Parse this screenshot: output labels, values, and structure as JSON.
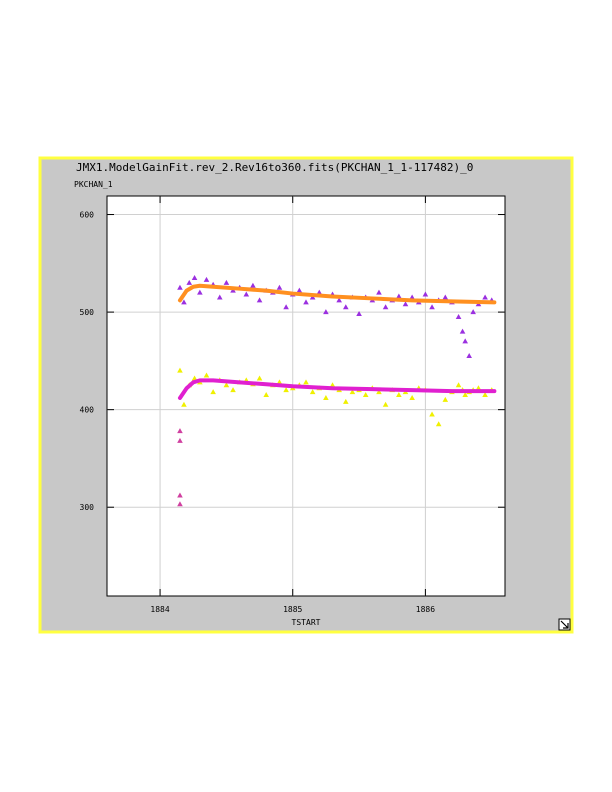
{
  "chart_data": {
    "type": "scatter",
    "title": "JMX1.ModelGainFit.rev_2.Rev16to360.fits(PKCHAN_1_1-117482)_0",
    "y_label": "PKCHAN_1",
    "x_label": "TSTART",
    "xlim": [
      1883.6,
      1886.6
    ],
    "ylim": [
      209,
      619
    ],
    "xticks": [
      1884,
      1885,
      1886
    ],
    "yticks": [
      300,
      400,
      500,
      600
    ],
    "grid": true,
    "series": [
      {
        "color": "#9b30e0",
        "mode": "markers",
        "x": [
          1884.15,
          1884.18,
          1884.22,
          1884.26,
          1884.3,
          1884.35,
          1884.4,
          1884.45,
          1884.5,
          1884.55,
          1884.6,
          1884.65,
          1884.7,
          1884.75,
          1884.8,
          1884.85,
          1884.9,
          1884.95,
          1885.0,
          1885.05,
          1885.1,
          1885.15,
          1885.2,
          1885.25,
          1885.3,
          1885.35,
          1885.4,
          1885.45,
          1885.5,
          1885.55,
          1885.6,
          1885.65,
          1885.7,
          1885.75,
          1885.8,
          1885.85,
          1885.9,
          1885.95,
          1886.0,
          1886.05,
          1886.1,
          1886.15,
          1886.2,
          1886.25,
          1886.28,
          1886.3,
          1886.33,
          1886.36,
          1886.4,
          1886.45,
          1886.5
        ],
        "values": [
          525,
          510,
          530,
          535,
          520,
          533,
          528,
          515,
          530,
          522,
          525,
          518,
          527,
          512,
          522,
          520,
          525,
          505,
          518,
          522,
          510,
          515,
          520,
          500,
          518,
          512,
          505,
          515,
          498,
          515,
          512,
          520,
          505,
          512,
          516,
          508,
          515,
          510,
          518,
          505,
          512,
          515,
          510,
          495,
          480,
          470,
          455,
          500,
          508,
          515,
          512
        ]
      },
      {
        "color": "#f0f000",
        "mode": "markers",
        "x": [
          1884.15,
          1884.18,
          1884.22,
          1884.26,
          1884.3,
          1884.35,
          1884.4,
          1884.45,
          1884.5,
          1884.55,
          1884.6,
          1884.65,
          1884.7,
          1884.75,
          1884.8,
          1884.85,
          1884.9,
          1884.95,
          1885.0,
          1885.05,
          1885.1,
          1885.15,
          1885.2,
          1885.25,
          1885.3,
          1885.35,
          1885.4,
          1885.45,
          1885.5,
          1885.55,
          1885.6,
          1885.65,
          1885.7,
          1885.75,
          1885.8,
          1885.85,
          1885.9,
          1885.95,
          1886.0,
          1886.05,
          1886.1,
          1886.15,
          1886.2,
          1886.25,
          1886.28,
          1886.3,
          1886.33,
          1886.36,
          1886.4,
          1886.45,
          1886.5
        ],
        "values": [
          440,
          405,
          425,
          432,
          428,
          435,
          418,
          430,
          425,
          420,
          428,
          430,
          426,
          432,
          415,
          425,
          428,
          420,
          422,
          425,
          428,
          418,
          422,
          412,
          425,
          420,
          408,
          418,
          420,
          415,
          422,
          418,
          405,
          420,
          415,
          418,
          412,
          422,
          420,
          395,
          385,
          410,
          418,
          425,
          420,
          415,
          418,
          420,
          422,
          415,
          420
        ]
      },
      {
        "color": "#d040a0",
        "mode": "markers",
        "x": [
          1884.15,
          1884.15,
          1884.15,
          1884.15
        ],
        "values": [
          378,
          368,
          312,
          303
        ]
      },
      {
        "color": "#ff9020",
        "mode": "lines",
        "x": [
          1884.15,
          1884.2,
          1884.25,
          1884.3,
          1884.4,
          1884.6,
          1884.8,
          1885.0,
          1885.3,
          1885.6,
          1885.9,
          1886.2,
          1886.52
        ],
        "values": [
          512,
          522,
          526,
          527,
          526,
          524,
          522,
          519,
          516,
          514,
          512,
          511,
          510
        ]
      },
      {
        "color": "#e020d0",
        "mode": "lines",
        "x": [
          1884.15,
          1884.2,
          1884.25,
          1884.3,
          1884.4,
          1884.6,
          1884.8,
          1885.0,
          1885.3,
          1885.6,
          1885.9,
          1886.2,
          1886.52
        ],
        "values": [
          412,
          422,
          428,
          430,
          430,
          428,
          426,
          424,
          422,
          421,
          420,
          419,
          419
        ]
      }
    ]
  }
}
